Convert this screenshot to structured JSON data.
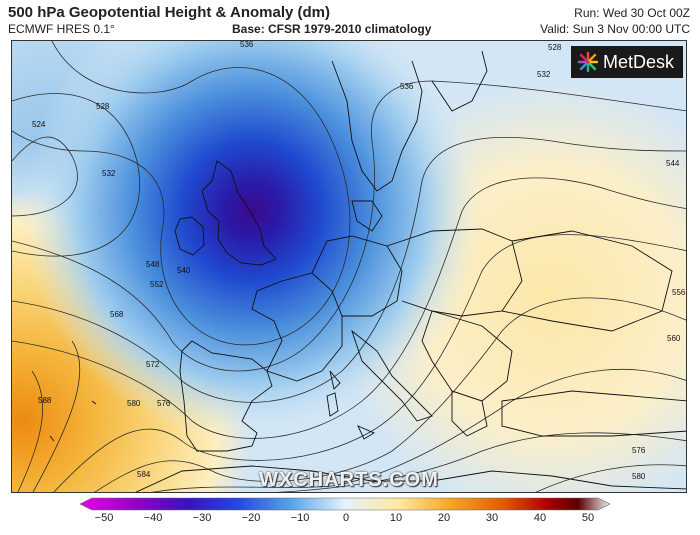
{
  "header": {
    "title": "500 hPa Geopotential Height & Anomaly (dm)",
    "model": "ECMWF HRES 0.1°",
    "base": "Base: CFSR 1979-2010 climatology",
    "run": "Run: Wed 30 Oct 00Z",
    "valid": "Valid: Sun 3 Nov 00:00 UTC"
  },
  "logo": {
    "text": "MetDesk",
    "icon": "metdesk-star-logo"
  },
  "watermark": "WXCHARTS.COM",
  "contour_labels": [
    "524",
    "528",
    "532",
    "536",
    "536",
    "528",
    "532",
    "540",
    "544",
    "548",
    "552",
    "556",
    "560",
    "568",
    "572",
    "576",
    "576",
    "580",
    "580",
    "584",
    "588"
  ],
  "colorbar": {
    "ticks": [
      "−50",
      "−40",
      "−30",
      "−20",
      "−10",
      "0",
      "10",
      "20",
      "30",
      "40",
      "50"
    ],
    "colors": [
      "#e800e8",
      "#9a00c8",
      "#3c10c0",
      "#2348e0",
      "#5aa6e8",
      "#e6f2fb",
      "#fde9a0",
      "#f5a623",
      "#e45a00",
      "#b00000",
      "#5a0000",
      "#f0f0f0"
    ]
  }
}
